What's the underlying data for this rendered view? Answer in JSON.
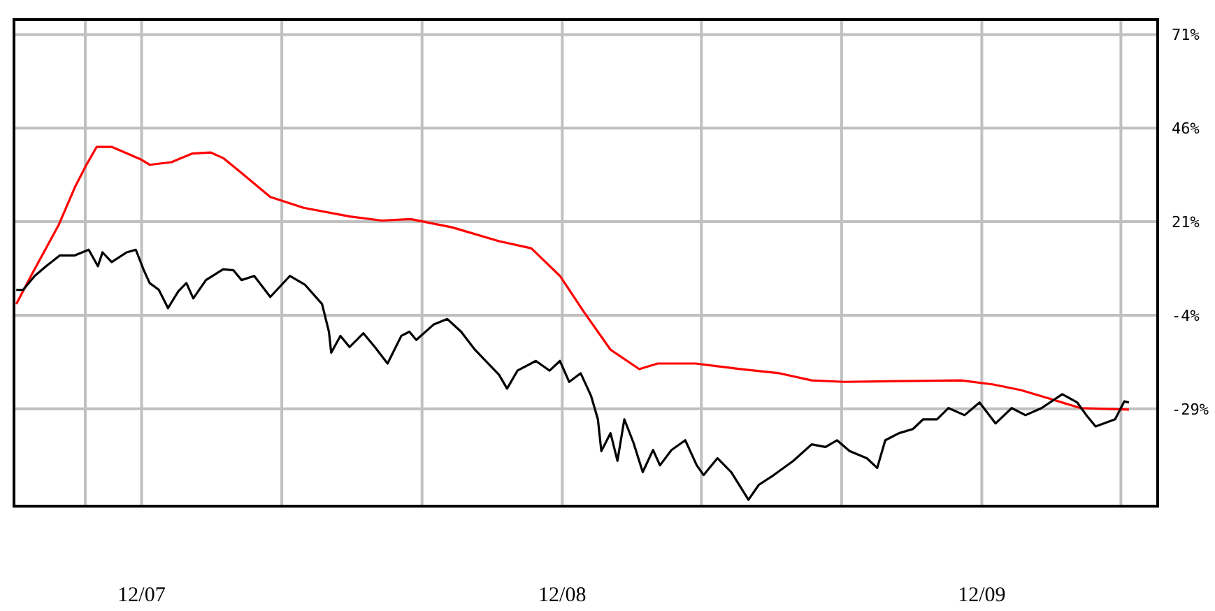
{
  "chart_data": {
    "type": "line",
    "xlim": [
      "2007-08-12",
      "2010-05-03"
    ],
    "ylim": [
      -55,
      75
    ],
    "xticks": [
      {
        "value": "2007-10-13",
        "label": null
      },
      {
        "value": "2007-12-01",
        "label": "12/07"
      },
      {
        "value": "2008-04-01",
        "label": null
      },
      {
        "value": "2008-08-01",
        "label": null
      },
      {
        "value": "2008-12-01",
        "label": "12/08"
      },
      {
        "value": "2009-04-01",
        "label": null
      },
      {
        "value": "2009-08-01",
        "label": null
      },
      {
        "value": "2009-12-01",
        "label": "12/09"
      },
      {
        "value": "2010-04-01",
        "label": null
      }
    ],
    "yticks": [
      {
        "value": 71,
        "label": "71%"
      },
      {
        "value": 46,
        "label": "46%"
      },
      {
        "value": 21,
        "label": "21%"
      },
      {
        "value": -4,
        "label": "-4%"
      },
      {
        "value": -29,
        "label": "-29%"
      }
    ],
    "grid": true,
    "marker": "none",
    "line_style": "solid",
    "series": [
      {
        "color": "#ff0000",
        "x": [
          "2007-08-14",
          "2007-08-28",
          "2007-09-20",
          "2007-10-04",
          "2007-10-14",
          "2007-10-23",
          "2007-11-05",
          "2007-11-30",
          "2007-12-08",
          "2007-12-27",
          "2008-01-14",
          "2008-01-30",
          "2008-02-10",
          "2008-02-26",
          "2008-03-22",
          "2008-04-20",
          "2008-05-30",
          "2008-06-27",
          "2008-07-22",
          "2008-08-27",
          "2008-10-07",
          "2008-11-04",
          "2008-11-29",
          "2008-12-20",
          "2009-01-12",
          "2009-02-06",
          "2009-02-22",
          "2009-03-27",
          "2009-05-06",
          "2009-06-08",
          "2009-07-06",
          "2009-08-03",
          "2009-11-13",
          "2009-12-11",
          "2010-01-04",
          "2010-01-28",
          "2010-02-25",
          "2010-04-08"
        ],
        "values": [
          -1.0,
          7.2,
          20.2,
          30.2,
          36.2,
          41.0,
          41.0,
          37.7,
          36.2,
          36.9,
          39.2,
          39.5,
          38.0,
          34.0,
          27.6,
          24.7,
          22.4,
          21.3,
          21.7,
          19.5,
          15.8,
          13.9,
          6.5,
          -3.2,
          -13.2,
          -18.4,
          -16.9,
          -16.9,
          -18.4,
          -19.5,
          -21.4,
          -21.8,
          -21.4,
          -22.5,
          -24.0,
          -26.2,
          -28.8,
          -29.2
        ]
      },
      {
        "color": "#000000",
        "x": [
          "2007-08-14",
          "2007-08-20",
          "2007-08-30",
          "2007-09-09",
          "2007-09-21",
          "2007-10-04",
          "2007-10-16",
          "2007-10-24",
          "2007-10-28",
          "2007-11-05",
          "2007-11-18",
          "2007-11-26",
          "2007-12-03",
          "2007-12-08",
          "2007-12-16",
          "2007-12-24",
          "2008-01-02",
          "2008-01-09",
          "2008-01-15",
          "2008-01-26",
          "2008-02-10",
          "2008-02-19",
          "2008-02-26",
          "2008-03-08",
          "2008-03-22",
          "2008-04-08",
          "2008-04-21",
          "2008-05-06",
          "2008-05-12",
          "2008-05-14",
          "2008-05-22",
          "2008-05-30",
          "2008-06-11",
          "2008-06-21",
          "2008-07-02",
          "2008-07-14",
          "2008-07-21",
          "2008-07-27",
          "2008-08-11",
          "2008-08-23",
          "2008-09-04",
          "2008-09-16",
          "2008-10-07",
          "2008-10-14",
          "2008-10-23",
          "2008-11-08",
          "2008-11-20",
          "2008-11-29",
          "2008-12-07",
          "2008-12-17",
          "2008-12-26",
          "2009-01-01",
          "2009-01-04",
          "2009-01-12",
          "2009-01-18",
          "2009-01-24",
          "2009-02-01",
          "2009-02-09",
          "2009-02-18",
          "2009-02-24",
          "2009-03-06",
          "2009-03-18",
          "2009-03-28",
          "2009-04-03",
          "2009-04-15",
          "2009-04-27",
          "2009-05-12",
          "2009-05-21",
          "2009-06-03",
          "2009-06-20",
          "2009-07-06",
          "2009-07-18",
          "2009-07-28",
          "2009-08-08",
          "2009-08-23",
          "2009-09-01",
          "2009-09-08",
          "2009-09-20",
          "2009-10-02",
          "2009-10-11",
          "2009-10-23",
          "2009-11-02",
          "2009-11-16",
          "2009-11-29",
          "2009-12-13",
          "2009-12-27",
          "2010-01-08",
          "2010-01-22",
          "2010-02-09",
          "2010-02-22",
          "2010-03-02",
          "2010-03-10",
          "2010-03-27",
          "2010-04-04",
          "2010-04-08"
        ],
        "values": [
          2.8,
          2.8,
          6.5,
          9.1,
          12.0,
          12.0,
          13.5,
          9.1,
          12.8,
          10.2,
          12.8,
          13.5,
          8.0,
          4.6,
          2.8,
          -2.1,
          2.4,
          4.6,
          0.5,
          5.4,
          8.3,
          8.0,
          5.4,
          6.5,
          0.9,
          6.5,
          4.2,
          -1.0,
          -8.4,
          -14.0,
          -9.5,
          -12.5,
          -8.8,
          -12.5,
          -16.9,
          -9.5,
          -8.4,
          -10.6,
          -6.5,
          -5.0,
          -8.4,
          -13.2,
          -19.9,
          -23.6,
          -18.8,
          -16.2,
          -18.8,
          -16.2,
          -21.8,
          -19.5,
          -25.5,
          -31.8,
          -40.3,
          -35.5,
          -42.9,
          -31.8,
          -38.1,
          -45.9,
          -40.0,
          -44.1,
          -40.0,
          -37.4,
          -44.1,
          -46.7,
          -42.2,
          -45.9,
          -53.3,
          -49.3,
          -46.7,
          -42.9,
          -38.5,
          -39.2,
          -37.4,
          -40.3,
          -42.2,
          -44.8,
          -37.4,
          -35.5,
          -34.4,
          -31.8,
          -31.8,
          -28.8,
          -30.7,
          -27.3,
          -32.9,
          -28.8,
          -30.7,
          -28.8,
          -25.1,
          -27.3,
          -30.7,
          -33.7,
          -31.8,
          -27.0,
          -27.3
        ]
      }
    ]
  }
}
